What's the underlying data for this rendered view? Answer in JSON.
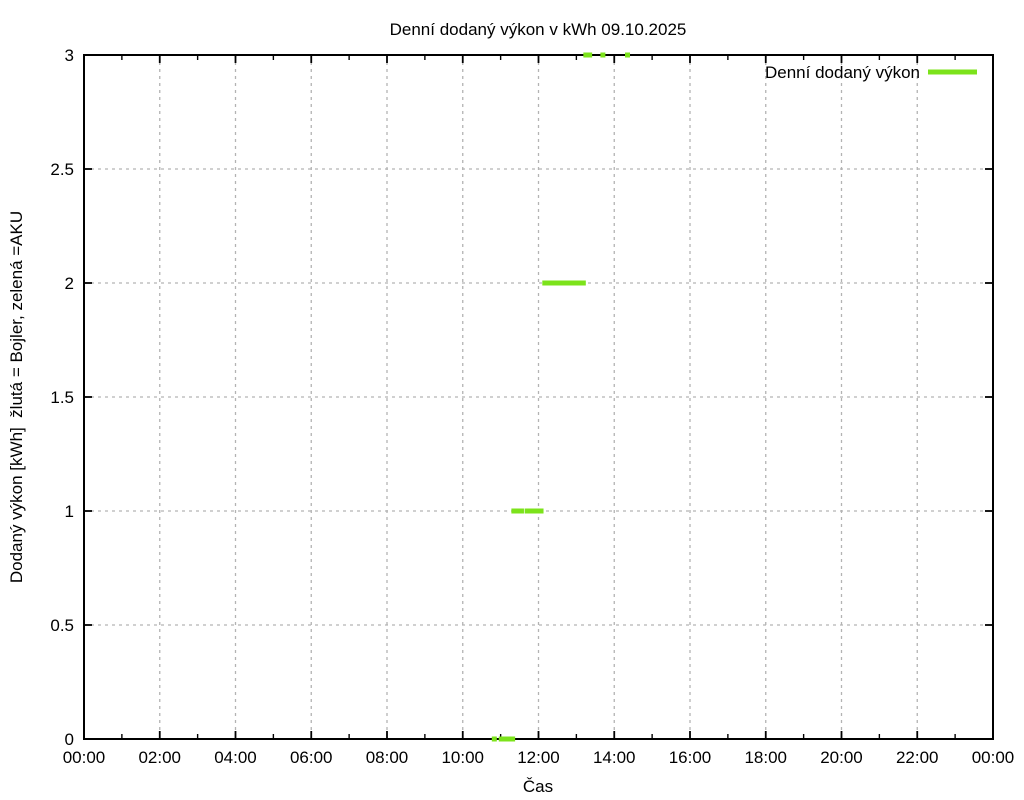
{
  "chart_data": {
    "type": "scatter",
    "title": "Denní dodaný výkon v kWh 09.10.2025",
    "xlabel": "Čas",
    "ylabel": "Dodaný výkon [kWh]  žlutá = Bojler, zelená =AKU",
    "x_unit": "time-of-day",
    "xlim_hours": [
      0,
      24
    ],
    "ylim": [
      0,
      3
    ],
    "grid": {
      "style": "dashed",
      "color": "#b3b3b3",
      "at": "major ticks only"
    },
    "x_major_ticks": [
      {
        "hour": 0,
        "label": "00:00"
      },
      {
        "hour": 2,
        "label": "02:00"
      },
      {
        "hour": 4,
        "label": "04:00"
      },
      {
        "hour": 6,
        "label": "06:00"
      },
      {
        "hour": 8,
        "label": "08:00"
      },
      {
        "hour": 10,
        "label": "10:00"
      },
      {
        "hour": 12,
        "label": "12:00"
      },
      {
        "hour": 14,
        "label": "14:00"
      },
      {
        "hour": 16,
        "label": "16:00"
      },
      {
        "hour": 18,
        "label": "18:00"
      },
      {
        "hour": 20,
        "label": "20:00"
      },
      {
        "hour": 22,
        "label": "22:00"
      },
      {
        "hour": 24,
        "label": "00:00"
      }
    ],
    "x_minor_tick_every_hours": 1,
    "y_major_ticks": [
      {
        "value": 0,
        "label": "0"
      },
      {
        "value": 0.5,
        "label": "0.5"
      },
      {
        "value": 1,
        "label": "1"
      },
      {
        "value": 1.5,
        "label": "1.5"
      },
      {
        "value": 2,
        "label": "2"
      },
      {
        "value": 2.5,
        "label": "2.5"
      },
      {
        "value": 3,
        "label": "3"
      }
    ],
    "legend": {
      "label": "Denní dodaný výkon",
      "position": "top-right-inside",
      "sample": "thick-green-line"
    },
    "colors": {
      "series": "#7ce31b",
      "grid": "#b3b3b3",
      "axis": "#000000",
      "background": "#ffffff"
    },
    "series": [
      {
        "name": "Denní dodaný výkon",
        "color": "#7ce31b",
        "marker": "filled-square",
        "marker_size_px": 5,
        "points": [
          [
            "10:50",
            0
          ],
          [
            "11:01",
            0
          ],
          [
            "11:07",
            0
          ],
          [
            "11:13",
            0
          ],
          [
            "11:19",
            0
          ],
          [
            "11:21",
            1
          ],
          [
            "11:27",
            1
          ],
          [
            "11:33",
            1
          ],
          [
            "11:42",
            1
          ],
          [
            "11:48",
            1
          ],
          [
            "11:53",
            1
          ],
          [
            "12:00",
            1
          ],
          [
            "12:04",
            1
          ],
          [
            "12:10",
            2
          ],
          [
            "12:15",
            2
          ],
          [
            "12:21",
            2
          ],
          [
            "12:27",
            2
          ],
          [
            "12:33",
            2
          ],
          [
            "12:40",
            2
          ],
          [
            "12:46",
            2
          ],
          [
            "12:52",
            2
          ],
          [
            "12:59",
            2
          ],
          [
            "13:05",
            2
          ],
          [
            "13:11",
            2
          ],
          [
            "13:15",
            3
          ],
          [
            "13:21",
            3
          ],
          [
            "13:42",
            3
          ],
          [
            "14:21",
            3
          ]
        ]
      }
    ]
  }
}
